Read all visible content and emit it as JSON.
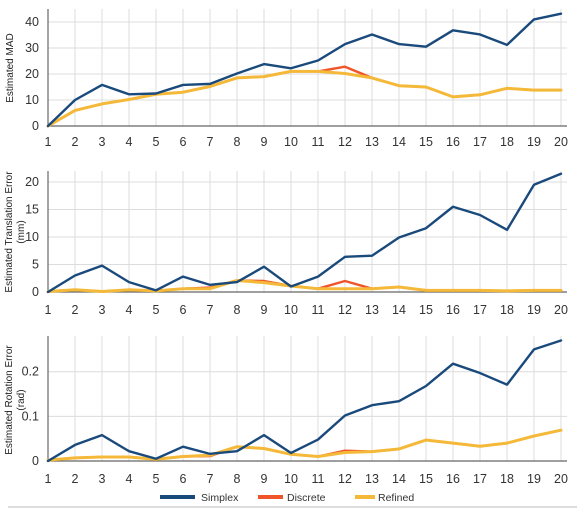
{
  "chart_data": [
    {
      "type": "line",
      "ylabel": "Estimated MAD",
      "x": [
        1,
        2,
        3,
        4,
        5,
        6,
        7,
        8,
        9,
        10,
        11,
        12,
        13,
        14,
        15,
        16,
        17,
        18,
        19,
        20
      ],
      "ylim": [
        0,
        45
      ],
      "yticks": [
        0,
        10,
        20,
        30,
        40
      ],
      "series": [
        {
          "name": "Simplex",
          "values": [
            0,
            10,
            15.8,
            12.2,
            12.5,
            15.8,
            16.2,
            20.2,
            23.8,
            22.2,
            25.2,
            31.5,
            35.2,
            31.5,
            30.5,
            36.8,
            35.2,
            31.2,
            41,
            43.2
          ]
        },
        {
          "name": "Discrete",
          "values": [
            0,
            6,
            8.5,
            10.2,
            12.2,
            13,
            15.2,
            18.5,
            19,
            21,
            21,
            22.8,
            18.5,
            15.5,
            15,
            11.2,
            12,
            14.5,
            13.8,
            13.8
          ]
        },
        {
          "name": "Refined",
          "values": [
            0,
            6,
            8.5,
            10.2,
            12.2,
            13,
            15.2,
            18.5,
            19,
            21,
            21,
            20.2,
            18.5,
            15.5,
            15,
            11.2,
            12,
            14.5,
            13.8,
            13.8
          ]
        }
      ]
    },
    {
      "type": "line",
      "ylabel": "Estimated Translation Error (mm)",
      "x": [
        1,
        2,
        3,
        4,
        5,
        6,
        7,
        8,
        9,
        10,
        11,
        12,
        13,
        14,
        15,
        16,
        17,
        18,
        19,
        20
      ],
      "ylim": [
        0,
        22
      ],
      "yticks": [
        0,
        5,
        10,
        15,
        20
      ],
      "series": [
        {
          "name": "Simplex",
          "values": [
            0,
            3,
            4.8,
            1.8,
            0.3,
            2.8,
            1.3,
            1.8,
            4.6,
            1,
            2.8,
            6.4,
            6.6,
            9.9,
            11.6,
            15.5,
            14,
            11.3,
            19.5,
            21.5
          ]
        },
        {
          "name": "Discrete",
          "values": [
            0.1,
            0.4,
            0.1,
            0.4,
            0.2,
            0.6,
            0.8,
            2.1,
            2,
            1.1,
            0.6,
            2,
            0.6,
            0.9,
            0.3,
            0.3,
            0.3,
            0.2,
            0.3,
            0.3
          ]
        },
        {
          "name": "Refined",
          "values": [
            0.1,
            0.4,
            0.1,
            0.4,
            0.2,
            0.6,
            0.6,
            2.1,
            1.7,
            1.1,
            0.6,
            0.6,
            0.6,
            0.9,
            0.3,
            0.3,
            0.3,
            0.2,
            0.3,
            0.3
          ]
        }
      ]
    },
    {
      "type": "line",
      "ylabel": "Estimated Rotation Error (rad)",
      "x": [
        1,
        2,
        3,
        4,
        5,
        6,
        7,
        8,
        9,
        10,
        11,
        12,
        13,
        14,
        15,
        16,
        17,
        18,
        19,
        20
      ],
      "ylim": [
        0,
        0.28
      ],
      "yticks": [
        0,
        0.1,
        0.2
      ],
      "ytick_labels": [
        "0",
        "0.1",
        "0.2"
      ],
      "series": [
        {
          "name": "Simplex",
          "values": [
            0,
            0.036,
            0.058,
            0.022,
            0.005,
            0.032,
            0.016,
            0.022,
            0.058,
            0.018,
            0.048,
            0.102,
            0.125,
            0.134,
            0.168,
            0.218,
            0.197,
            0.171,
            0.25,
            0.27
          ]
        },
        {
          "name": "Discrete",
          "values": [
            0.002,
            0.007,
            0.009,
            0.009,
            0.004,
            0.01,
            0.011,
            0.032,
            0.028,
            0.015,
            0.01,
            0.023,
            0.021,
            0.027,
            0.047,
            0.04,
            0.033,
            0.04,
            0.056,
            0.069
          ]
        },
        {
          "name": "Refined",
          "values": [
            0.002,
            0.007,
            0.009,
            0.009,
            0.004,
            0.01,
            0.013,
            0.032,
            0.028,
            0.015,
            0.01,
            0.019,
            0.021,
            0.027,
            0.047,
            0.04,
            0.033,
            0.04,
            0.056,
            0.069
          ]
        }
      ]
    }
  ],
  "colors": {
    "Simplex": "#1a4a7c",
    "Discrete": "#f0552a",
    "Refined": "#f5b93a",
    "grid": "#dcdcdc",
    "axis": "#666666"
  },
  "grid": true,
  "legend": {
    "placement": "bottom",
    "items": [
      {
        "label": "Simplex"
      },
      {
        "label": "Discrete"
      },
      {
        "label": "Refined"
      }
    ]
  }
}
